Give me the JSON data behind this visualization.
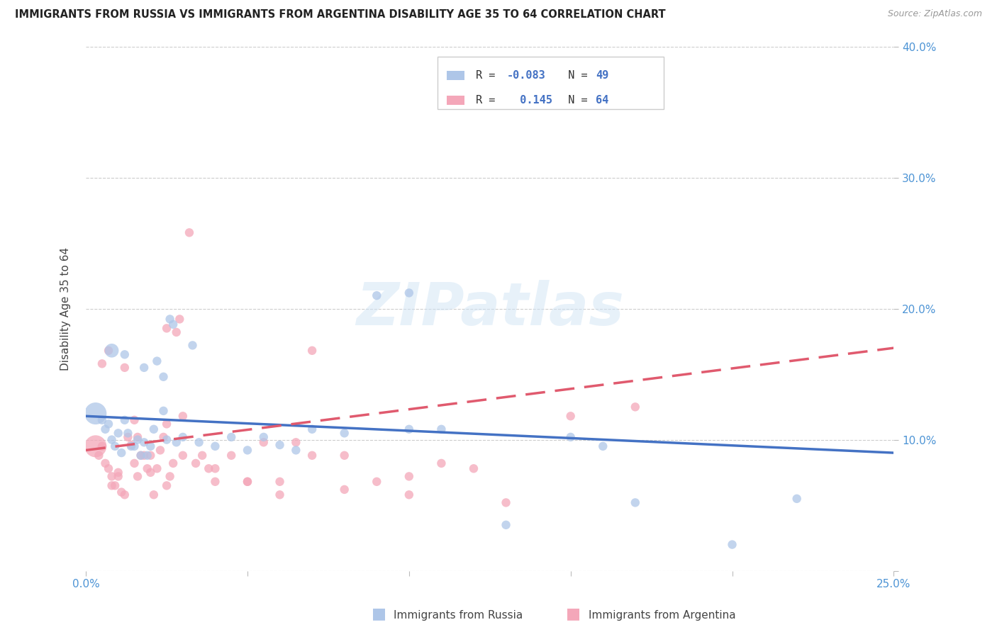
{
  "title": "IMMIGRANTS FROM RUSSIA VS IMMIGRANTS FROM ARGENTINA DISABILITY AGE 35 TO 64 CORRELATION CHART",
  "source": "Source: ZipAtlas.com",
  "ylabel": "Disability Age 35 to 64",
  "xlim": [
    0.0,
    0.25
  ],
  "ylim": [
    0.0,
    0.4
  ],
  "xticks": [
    0.0,
    0.05,
    0.1,
    0.15,
    0.2,
    0.25
  ],
  "yticks": [
    0.0,
    0.1,
    0.2,
    0.3,
    0.4
  ],
  "xticklabels": [
    "0.0%",
    "",
    "",
    "",
    "",
    "25.0%"
  ],
  "yticklabels": [
    "",
    "10.0%",
    "20.0%",
    "30.0%",
    "40.0%"
  ],
  "russia_color": "#aec6e8",
  "argentina_color": "#f4a7b9",
  "russia_line_color": "#4472c4",
  "argentina_line_color": "#e05a6e",
  "watermark": "ZIPatlas",
  "russia_scatter_x": [
    0.003,
    0.005,
    0.006,
    0.007,
    0.008,
    0.009,
    0.01,
    0.011,
    0.012,
    0.013,
    0.014,
    0.015,
    0.016,
    0.017,
    0.018,
    0.019,
    0.02,
    0.021,
    0.022,
    0.024,
    0.025,
    0.026,
    0.027,
    0.028,
    0.03,
    0.033,
    0.035,
    0.04,
    0.045,
    0.05,
    0.055,
    0.06,
    0.065,
    0.07,
    0.08,
    0.09,
    0.1,
    0.11,
    0.13,
    0.16,
    0.17,
    0.008,
    0.012,
    0.018,
    0.024,
    0.1,
    0.15,
    0.2,
    0.22
  ],
  "russia_scatter_y": [
    0.12,
    0.115,
    0.108,
    0.112,
    0.1,
    0.095,
    0.105,
    0.09,
    0.115,
    0.105,
    0.095,
    0.095,
    0.1,
    0.088,
    0.098,
    0.088,
    0.095,
    0.108,
    0.16,
    0.122,
    0.1,
    0.192,
    0.188,
    0.098,
    0.102,
    0.172,
    0.098,
    0.095,
    0.102,
    0.092,
    0.102,
    0.096,
    0.092,
    0.108,
    0.105,
    0.21,
    0.108,
    0.108,
    0.035,
    0.095,
    0.052,
    0.168,
    0.165,
    0.155,
    0.148,
    0.212,
    0.102,
    0.02,
    0.055
  ],
  "russia_scatter_size": [
    500,
    80,
    80,
    80,
    80,
    80,
    80,
    80,
    80,
    80,
    80,
    80,
    80,
    80,
    80,
    80,
    80,
    80,
    80,
    80,
    80,
    80,
    80,
    80,
    80,
    80,
    80,
    80,
    80,
    80,
    80,
    80,
    80,
    80,
    80,
    80,
    80,
    80,
    80,
    80,
    80,
    200,
    80,
    80,
    80,
    80,
    80,
    80,
    80
  ],
  "argentina_scatter_x": [
    0.003,
    0.004,
    0.005,
    0.006,
    0.007,
    0.008,
    0.009,
    0.01,
    0.011,
    0.012,
    0.013,
    0.014,
    0.015,
    0.016,
    0.017,
    0.018,
    0.019,
    0.02,
    0.021,
    0.022,
    0.023,
    0.024,
    0.025,
    0.026,
    0.027,
    0.028,
    0.029,
    0.03,
    0.032,
    0.034,
    0.036,
    0.038,
    0.04,
    0.045,
    0.05,
    0.055,
    0.06,
    0.065,
    0.07,
    0.08,
    0.09,
    0.1,
    0.11,
    0.12,
    0.15,
    0.17,
    0.005,
    0.008,
    0.012,
    0.016,
    0.02,
    0.025,
    0.03,
    0.04,
    0.05,
    0.06,
    0.07,
    0.08,
    0.1,
    0.13,
    0.007,
    0.01,
    0.015,
    0.025
  ],
  "argentina_scatter_y": [
    0.095,
    0.088,
    0.095,
    0.082,
    0.078,
    0.072,
    0.065,
    0.072,
    0.06,
    0.058,
    0.102,
    0.096,
    0.082,
    0.102,
    0.088,
    0.088,
    0.078,
    0.088,
    0.058,
    0.078,
    0.092,
    0.102,
    0.112,
    0.072,
    0.082,
    0.182,
    0.192,
    0.088,
    0.258,
    0.082,
    0.088,
    0.078,
    0.078,
    0.088,
    0.068,
    0.098,
    0.068,
    0.098,
    0.168,
    0.088,
    0.068,
    0.058,
    0.082,
    0.078,
    0.118,
    0.125,
    0.158,
    0.065,
    0.155,
    0.072,
    0.075,
    0.065,
    0.118,
    0.068,
    0.068,
    0.058,
    0.088,
    0.062,
    0.072,
    0.052,
    0.168,
    0.075,
    0.115,
    0.185
  ],
  "argentina_scatter_size": [
    500,
    80,
    80,
    80,
    80,
    80,
    80,
    80,
    80,
    80,
    80,
    80,
    80,
    80,
    80,
    80,
    80,
    80,
    80,
    80,
    80,
    80,
    80,
    80,
    80,
    80,
    80,
    80,
    80,
    80,
    80,
    80,
    80,
    80,
    80,
    80,
    80,
    80,
    80,
    80,
    80,
    80,
    80,
    80,
    80,
    80,
    80,
    80,
    80,
    80,
    80,
    80,
    80,
    80,
    80,
    80,
    80,
    80,
    80,
    80,
    80,
    80,
    80,
    80
  ],
  "russia_trend_x": [
    0.0,
    0.25
  ],
  "russia_trend_y": [
    0.118,
    0.09
  ],
  "argentina_trend_x": [
    0.0,
    0.25
  ],
  "argentina_trend_y": [
    0.092,
    0.17
  ]
}
